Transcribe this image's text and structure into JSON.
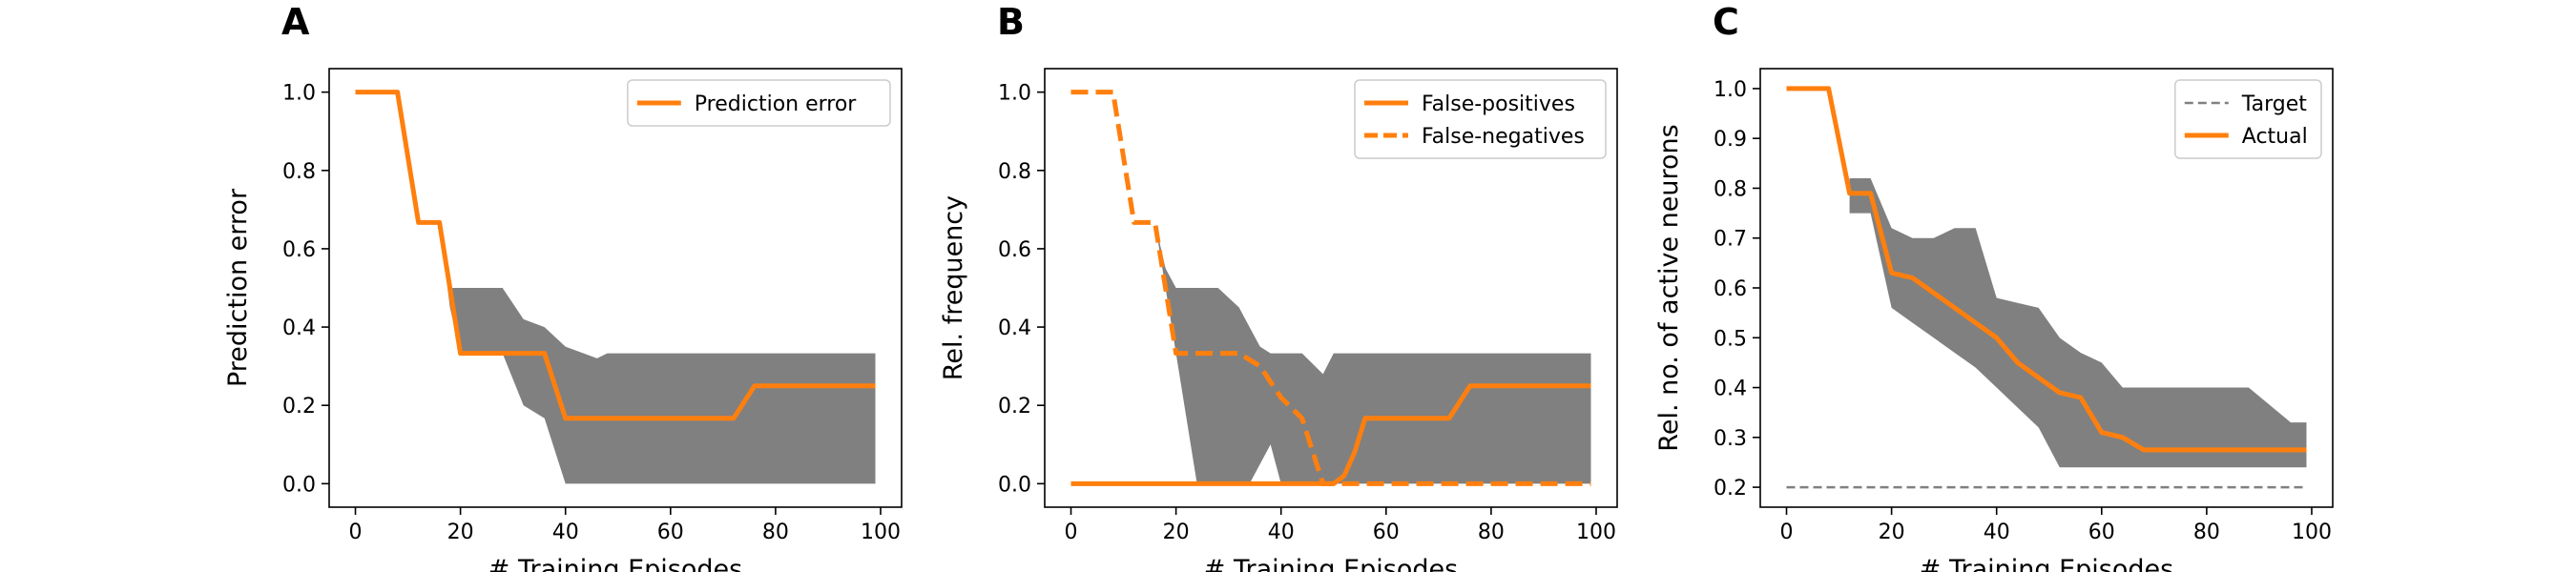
{
  "figure": {
    "panels": [
      {
        "letter": "A"
      },
      {
        "letter": "B"
      },
      {
        "letter": "C"
      }
    ]
  },
  "chart_data": [
    {
      "panel": "A",
      "type": "line",
      "xlabel": "# Training Episodes",
      "ylabel": "Prediction error",
      "xlim": [
        -5,
        104
      ],
      "ylim": [
        -0.06,
        1.06
      ],
      "xticks": [
        0,
        20,
        40,
        60,
        80,
        100
      ],
      "yticks": [
        0.0,
        0.2,
        0.4,
        0.6,
        0.8,
        1.0
      ],
      "ytick_decimals": 1,
      "grid": false,
      "legend_position": "top-right",
      "series": [
        {
          "name": "Prediction error",
          "style": "solid",
          "color": "#ff7f0e",
          "x": [
            0,
            8,
            12,
            16,
            20,
            24,
            30,
            36,
            40,
            50,
            60,
            66,
            72,
            76,
            99
          ],
          "values": [
            1.0,
            1.0,
            0.667,
            0.667,
            0.333,
            0.333,
            0.333,
            0.333,
            0.167,
            0.167,
            0.167,
            0.167,
            0.167,
            0.25,
            0.25
          ]
        }
      ],
      "bands": [
        {
          "color": "#808080",
          "x": [
            16,
            18,
            20,
            28,
            32,
            36,
            40,
            44,
            46,
            48,
            50,
            60,
            70,
            80,
            90,
            99
          ],
          "lower": [
            0.667,
            0.45,
            0.333,
            0.333,
            0.2,
            0.167,
            0.0,
            0.0,
            0.0,
            0.0,
            0.0,
            0.0,
            0.0,
            0.0,
            0.0,
            0.0
          ],
          "upper": [
            0.667,
            0.5,
            0.5,
            0.5,
            0.42,
            0.4,
            0.35,
            0.33,
            0.32,
            0.333,
            0.333,
            0.333,
            0.333,
            0.333,
            0.333,
            0.333
          ]
        }
      ]
    },
    {
      "panel": "B",
      "type": "line",
      "xlabel": "# Training Episodes",
      "ylabel": "Rel. frequency",
      "xlim": [
        -5,
        104
      ],
      "ylim": [
        -0.06,
        1.06
      ],
      "xticks": [
        0,
        20,
        40,
        60,
        80,
        100
      ],
      "yticks": [
        0.0,
        0.2,
        0.4,
        0.6,
        0.8,
        1.0
      ],
      "ytick_decimals": 1,
      "grid": false,
      "legend_position": "top-right",
      "series": [
        {
          "name": "False-positives",
          "style": "solid",
          "color": "#ff7f0e",
          "x": [
            0,
            50,
            52,
            54,
            56,
            60,
            66,
            72,
            76,
            99
          ],
          "values": [
            0.0,
            0.0,
            0.02,
            0.08,
            0.167,
            0.167,
            0.167,
            0.167,
            0.25,
            0.25
          ]
        },
        {
          "name": "False-negatives",
          "style": "dashed",
          "color": "#ff7f0e",
          "x": [
            0,
            8,
            12,
            16,
            20,
            24,
            32,
            36,
            40,
            44,
            48,
            50,
            60,
            99
          ],
          "values": [
            1.0,
            1.0,
            0.667,
            0.667,
            0.333,
            0.333,
            0.333,
            0.3,
            0.22,
            0.167,
            0.0,
            0.0,
            0.0,
            0.0
          ]
        }
      ],
      "bands": [
        {
          "color": "#808080",
          "x": [
            16,
            18,
            20,
            24,
            28,
            32,
            34,
            36,
            38,
            40,
            44,
            48,
            50,
            60,
            70,
            80,
            90,
            99
          ],
          "lower": [
            0.667,
            0.5,
            0.333,
            0.0,
            0.0,
            0.0,
            0.0,
            0.05,
            0.1,
            0.0,
            0.0,
            0.0,
            0.0,
            0.0,
            0.0,
            0.0,
            0.0,
            0.0
          ],
          "upper": [
            0.667,
            0.55,
            0.5,
            0.5,
            0.5,
            0.45,
            0.4,
            0.35,
            0.333,
            0.333,
            0.333,
            0.28,
            0.333,
            0.333,
            0.333,
            0.333,
            0.333,
            0.333
          ]
        }
      ]
    },
    {
      "panel": "C",
      "type": "line",
      "xlabel": "# Training Episodes",
      "ylabel": "Rel. no. of active neurons",
      "xlim": [
        -5,
        104
      ],
      "ylim": [
        0.16,
        1.04
      ],
      "xticks": [
        0,
        20,
        40,
        60,
        80,
        100
      ],
      "yticks": [
        0.2,
        0.3,
        0.4,
        0.5,
        0.6,
        0.7,
        0.8,
        0.9,
        1.0
      ],
      "ytick_decimals": 1,
      "grid": false,
      "legend_position": "top-right",
      "series": [
        {
          "name": "Target",
          "style": "dashed",
          "color": "#808080",
          "x": [
            0,
            99
          ],
          "values": [
            0.2,
            0.2
          ]
        },
        {
          "name": "Actual",
          "style": "solid",
          "color": "#ff7f0e",
          "x": [
            0,
            8,
            12,
            16,
            20,
            24,
            28,
            32,
            36,
            40,
            44,
            48,
            52,
            56,
            60,
            64,
            68,
            76,
            99
          ],
          "values": [
            1.0,
            1.0,
            0.79,
            0.79,
            0.63,
            0.62,
            0.59,
            0.56,
            0.53,
            0.5,
            0.45,
            0.42,
            0.39,
            0.38,
            0.31,
            0.3,
            0.275,
            0.275,
            0.275
          ]
        }
      ],
      "bands": [
        {
          "color": "#808080",
          "x": [
            12,
            16,
            20,
            24,
            28,
            32,
            36,
            40,
            44,
            48,
            52,
            56,
            60,
            64,
            68,
            72,
            80,
            88,
            96,
            99
          ],
          "lower": [
            0.75,
            0.75,
            0.56,
            0.53,
            0.5,
            0.47,
            0.44,
            0.4,
            0.36,
            0.32,
            0.24,
            0.24,
            0.24,
            0.24,
            0.24,
            0.24,
            0.24,
            0.24,
            0.24,
            0.24
          ],
          "upper": [
            0.82,
            0.82,
            0.72,
            0.7,
            0.7,
            0.72,
            0.72,
            0.58,
            0.57,
            0.56,
            0.5,
            0.47,
            0.45,
            0.4,
            0.4,
            0.4,
            0.4,
            0.4,
            0.33,
            0.33
          ]
        }
      ]
    }
  ]
}
